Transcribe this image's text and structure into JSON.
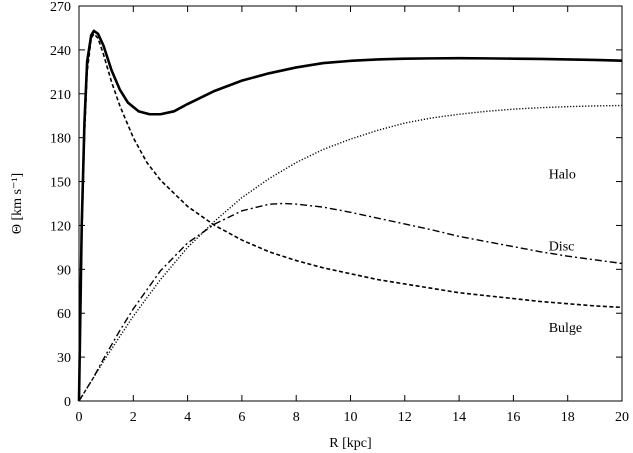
{
  "chart_data": {
    "type": "line",
    "title": "",
    "xlabel": "R [kpc]",
    "ylabel": "Θ [km s⁻¹]",
    "xlim": [
      0,
      20
    ],
    "ylim": [
      0,
      270
    ],
    "xticks": [
      0,
      2,
      4,
      6,
      8,
      10,
      12,
      14,
      16,
      18,
      20
    ],
    "yticks": [
      0,
      30,
      60,
      90,
      120,
      150,
      180,
      210,
      240,
      270
    ],
    "grid": false,
    "legend": "none",
    "series": [
      {
        "name": "",
        "style": "solid-thick",
        "color": "#000000",
        "points": [
          [
            0,
            0
          ],
          [
            0.1,
            120
          ],
          [
            0.2,
            190
          ],
          [
            0.3,
            232
          ],
          [
            0.45,
            250
          ],
          [
            0.55,
            253
          ],
          [
            0.7,
            251
          ],
          [
            0.9,
            243
          ],
          [
            1.2,
            226
          ],
          [
            1.5,
            213
          ],
          [
            1.8,
            204
          ],
          [
            2.2,
            198
          ],
          [
            2.6,
            196
          ],
          [
            3.0,
            196
          ],
          [
            3.5,
            198
          ],
          [
            4,
            203
          ],
          [
            5,
            212
          ],
          [
            6,
            219
          ],
          [
            7,
            224
          ],
          [
            8,
            228
          ],
          [
            9,
            231
          ],
          [
            10,
            232.5
          ],
          [
            11,
            233.5
          ],
          [
            12,
            234
          ],
          [
            13,
            234.2
          ],
          [
            14,
            234.3
          ],
          [
            15,
            234.2
          ],
          [
            16,
            234
          ],
          [
            17,
            233.8
          ],
          [
            18,
            233.5
          ],
          [
            19,
            233.1
          ],
          [
            20,
            232.6
          ]
        ]
      },
      {
        "name": "Halo",
        "style": "dotted",
        "color": "#000000",
        "points": [
          [
            0,
            0
          ],
          [
            1,
            30
          ],
          [
            2,
            58
          ],
          [
            3,
            83
          ],
          [
            4,
            105
          ],
          [
            5,
            123
          ],
          [
            6,
            139
          ],
          [
            7,
            152
          ],
          [
            8,
            163
          ],
          [
            9,
            172
          ],
          [
            10,
            179
          ],
          [
            11,
            185
          ],
          [
            12,
            190
          ],
          [
            13,
            193.5
          ],
          [
            14,
            196
          ],
          [
            15,
            198
          ],
          [
            16,
            199.5
          ],
          [
            17,
            200.5
          ],
          [
            18,
            201.2
          ],
          [
            19,
            201.7
          ],
          [
            20,
            202
          ]
        ]
      },
      {
        "name": "Disc",
        "style": "dash-dot",
        "color": "#000000",
        "points": [
          [
            0,
            0
          ],
          [
            0.5,
            15
          ],
          [
            1,
            32
          ],
          [
            1.5,
            48
          ],
          [
            2,
            63
          ],
          [
            3,
            89
          ],
          [
            4,
            108
          ],
          [
            5,
            121
          ],
          [
            6,
            130
          ],
          [
            7,
            134.5
          ],
          [
            7.5,
            135
          ],
          [
            8,
            134.6
          ],
          [
            9,
            132.5
          ],
          [
            10,
            129
          ],
          [
            11,
            125
          ],
          [
            12,
            121
          ],
          [
            13,
            117
          ],
          [
            14,
            112.5
          ],
          [
            15,
            109
          ],
          [
            16,
            105.5
          ],
          [
            17,
            102
          ],
          [
            18,
            99
          ],
          [
            19,
            96.5
          ],
          [
            20,
            94
          ]
        ]
      },
      {
        "name": "Bulge",
        "style": "dashed",
        "color": "#000000",
        "points": [
          [
            0,
            0
          ],
          [
            0.1,
            110
          ],
          [
            0.2,
            180
          ],
          [
            0.3,
            225
          ],
          [
            0.45,
            248
          ],
          [
            0.55,
            251
          ],
          [
            0.7,
            248
          ],
          [
            0.9,
            237
          ],
          [
            1.2,
            218
          ],
          [
            1.5,
            202
          ],
          [
            2,
            180
          ],
          [
            2.5,
            163
          ],
          [
            3,
            151
          ],
          [
            4,
            133
          ],
          [
            5,
            120
          ],
          [
            6,
            110
          ],
          [
            7,
            102
          ],
          [
            8,
            96
          ],
          [
            9,
            91
          ],
          [
            10,
            87
          ],
          [
            11,
            83
          ],
          [
            12,
            80
          ],
          [
            13,
            77
          ],
          [
            14,
            74
          ],
          [
            15,
            72
          ],
          [
            16,
            70
          ],
          [
            17,
            68
          ],
          [
            18,
            66.5
          ],
          [
            19,
            65
          ],
          [
            20,
            64
          ]
        ]
      }
    ]
  }
}
